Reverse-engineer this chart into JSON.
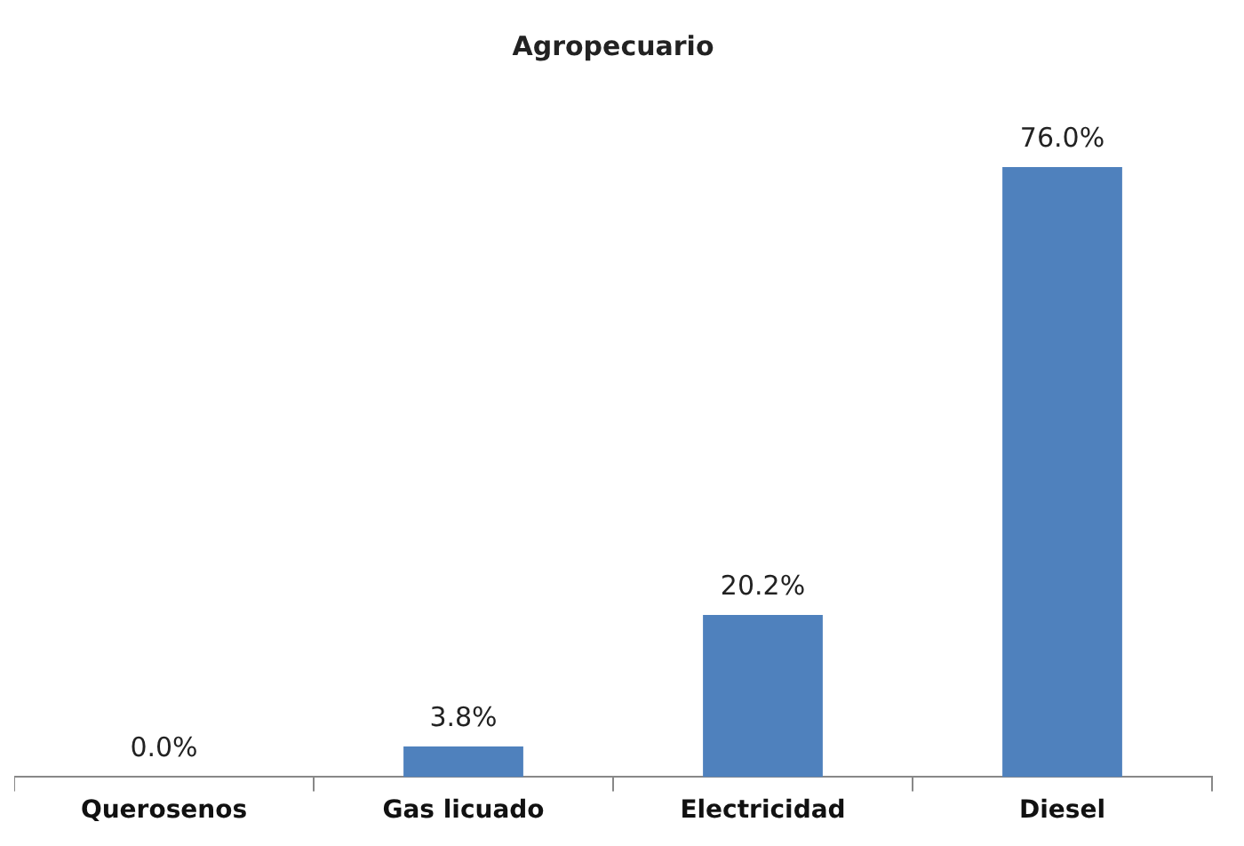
{
  "chart_data": {
    "type": "bar",
    "title": "Agropecuario",
    "categories": [
      "Querosenos",
      "Gas licuado",
      "Electricidad",
      "Diesel"
    ],
    "values": [
      0.0,
      3.8,
      20.2,
      76.0
    ],
    "value_labels": [
      "0.0%",
      "3.8%",
      "20.2%",
      "76.0%"
    ],
    "color": "#4f81bd",
    "grid": false,
    "legend": false
  }
}
